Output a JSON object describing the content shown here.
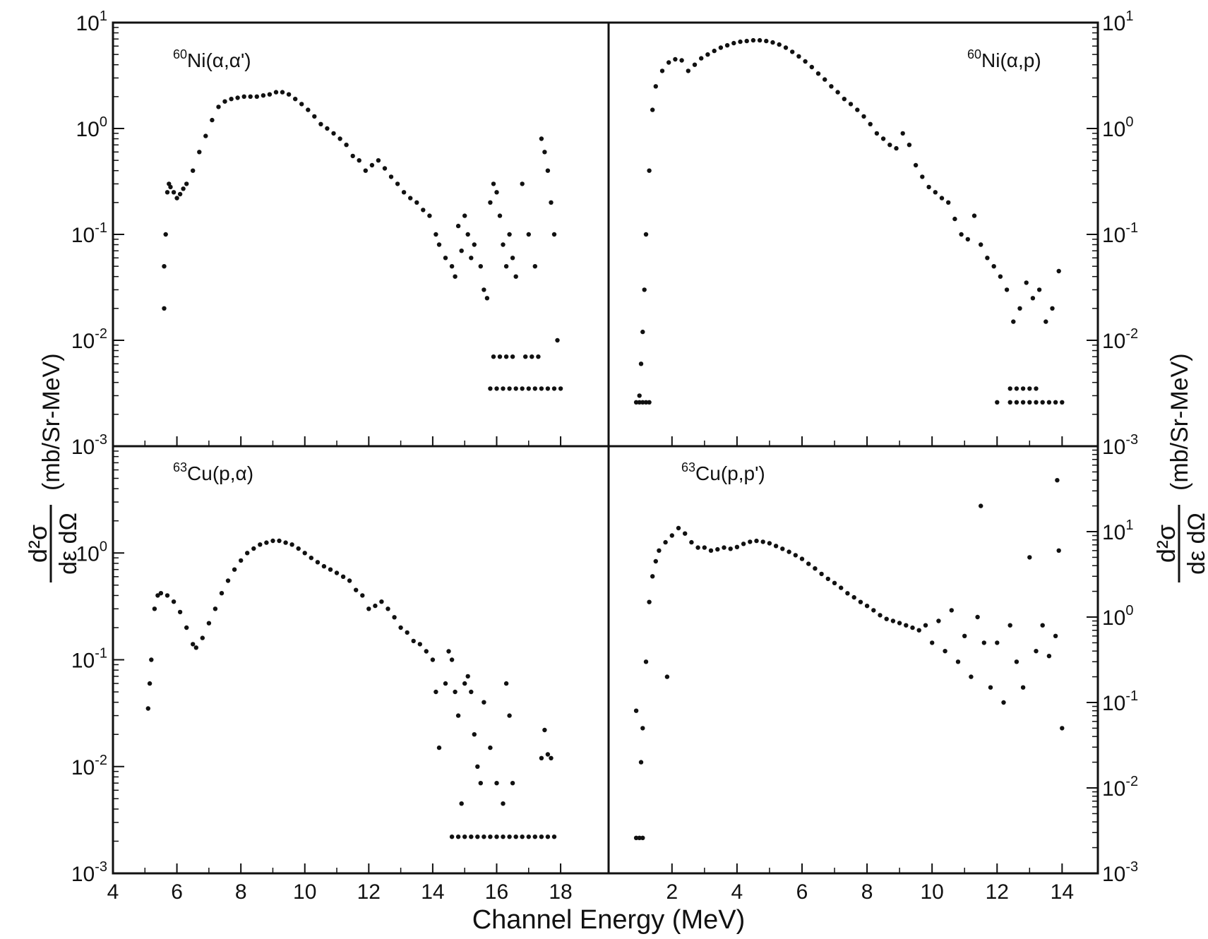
{
  "figure": {
    "xlabel": "Channel Energy (MeV)",
    "ylabel_left": {
      "numerator": "d²σ",
      "denominator": "dε dΩ",
      "units": "(mb/Sr-MeV)"
    },
    "ylabel_right": {
      "numerator": "d²σ",
      "denominator": "dε dΩ",
      "units": "(mb/Sr-MeV)"
    }
  },
  "chart_data": [
    {
      "type": "scatter",
      "title": "60Ni(α,α')",
      "label": {
        "mass": "60",
        "rest": "Ni(α,α')"
      },
      "yscale": "log",
      "xlim": [
        4,
        19.5
      ],
      "ylim": [
        0.001,
        10
      ],
      "xticks": [
        4,
        6,
        8,
        10,
        12,
        14,
        16,
        18
      ],
      "yticks": [
        {
          "value": 10,
          "base": "10",
          "exp": "1"
        },
        {
          "value": 1,
          "base": "10",
          "exp": "0"
        },
        {
          "value": 0.1,
          "base": "10",
          "exp": "-1"
        },
        {
          "value": 0.01,
          "base": "10",
          "exp": "-2"
        },
        {
          "value": 0.001,
          "base": "10",
          "exp": "-3"
        }
      ],
      "series": [
        {
          "x": [
            5.6,
            5.6,
            5.65,
            5.7,
            5.75,
            5.8,
            5.9,
            6.0,
            6.1,
            6.2,
            6.3,
            6.5,
            6.7,
            6.9,
            7.1,
            7.3,
            7.5,
            7.7,
            7.9,
            8.1,
            8.3,
            8.5,
            8.7,
            8.9,
            9.1,
            9.3,
            9.5,
            9.7,
            9.9,
            10.1,
            10.3,
            10.5,
            10.7,
            10.9,
            11.1,
            11.3,
            11.5,
            11.7,
            11.9,
            12.1,
            12.3,
            12.5,
            12.7,
            12.9,
            13.1,
            13.3,
            13.5,
            13.7,
            13.9,
            14.1,
            14.2,
            14.4,
            14.6,
            14.7,
            14.8,
            14.9,
            15.0,
            15.1,
            15.2,
            15.3,
            15.5,
            15.6,
            15.7,
            15.8,
            15.9,
            16.0,
            16.1,
            16.2,
            16.3,
            16.4,
            16.5,
            16.6,
            16.8,
            17.0,
            17.2,
            17.4,
            17.5,
            17.6,
            17.7,
            17.8,
            17.9
          ],
          "y": [
            0.02,
            0.05,
            0.1,
            0.25,
            0.3,
            0.28,
            0.25,
            0.22,
            0.24,
            0.27,
            0.3,
            0.4,
            0.6,
            0.85,
            1.2,
            1.6,
            1.8,
            1.9,
            1.95,
            2.0,
            2.0,
            2.0,
            2.05,
            2.1,
            2.2,
            2.2,
            2.1,
            1.9,
            1.7,
            1.5,
            1.3,
            1.1,
            1.0,
            0.9,
            0.8,
            0.7,
            0.55,
            0.5,
            0.4,
            0.45,
            0.5,
            0.42,
            0.35,
            0.3,
            0.25,
            0.22,
            0.2,
            0.17,
            0.15,
            0.1,
            0.08,
            0.06,
            0.05,
            0.04,
            0.12,
            0.07,
            0.15,
            0.1,
            0.06,
            0.08,
            0.05,
            0.03,
            0.025,
            0.2,
            0.3,
            0.25,
            0.15,
            0.08,
            0.05,
            0.1,
            0.06,
            0.04,
            0.3,
            0.1,
            0.05,
            0.8,
            0.6,
            0.4,
            0.2,
            0.1,
            0.01
          ]
        },
        {
          "x": [
            15.8,
            16.0,
            16.2,
            16.4,
            16.6,
            16.8,
            17.0,
            17.2,
            17.4,
            17.6,
            17.8,
            18.0
          ],
          "y": [
            0.0035,
            0.0035,
            0.0035,
            0.0035,
            0.0035,
            0.0035,
            0.0035,
            0.0035,
            0.0035,
            0.0035,
            0.0035,
            0.0035
          ]
        },
        {
          "x": [
            15.9,
            16.1,
            16.3,
            16.5,
            16.9,
            17.1,
            17.3
          ],
          "y": [
            0.007,
            0.007,
            0.007,
            0.007,
            0.007,
            0.007,
            0.007
          ]
        }
      ]
    },
    {
      "type": "scatter",
      "title": "60Ni(α,p)",
      "label": {
        "mass": "60",
        "rest": "Ni(α,p)"
      },
      "yscale": "log",
      "xlim": [
        0.05,
        15.1
      ],
      "ylim": [
        0.001,
        10
      ],
      "xticks": [
        2,
        4,
        6,
        8,
        10,
        12,
        14
      ],
      "yticks": [
        {
          "value": 10,
          "base": "10",
          "exp": "1"
        },
        {
          "value": 1,
          "base": "10",
          "exp": "0"
        },
        {
          "value": 0.1,
          "base": "10",
          "exp": "-1"
        },
        {
          "value": 0.01,
          "base": "10",
          "exp": "-2"
        },
        {
          "value": 0.001,
          "base": "10",
          "exp": "-3"
        }
      ],
      "series": [
        {
          "x": [
            1.0,
            1.05,
            1.1,
            1.15,
            1.2,
            1.3,
            1.4,
            1.5,
            1.7,
            1.9,
            2.1,
            2.3,
            2.5,
            2.7,
            2.9,
            3.1,
            3.3,
            3.5,
            3.7,
            3.9,
            4.1,
            4.3,
            4.5,
            4.7,
            4.9,
            5.1,
            5.3,
            5.5,
            5.7,
            5.9,
            6.1,
            6.3,
            6.5,
            6.7,
            6.9,
            7.1,
            7.3,
            7.5,
            7.7,
            7.9,
            8.1,
            8.3,
            8.5,
            8.7,
            8.9,
            9.1,
            9.3,
            9.5,
            9.7,
            9.9,
            10.1,
            10.3,
            10.5,
            10.7,
            10.9,
            11.1,
            11.3,
            11.5,
            11.7,
            11.9,
            12.1,
            12.3,
            12.5,
            12.7,
            12.9,
            13.1,
            13.3,
            13.5,
            13.7,
            13.9
          ],
          "y": [
            0.003,
            0.006,
            0.012,
            0.03,
            0.1,
            0.4,
            1.5,
            2.5,
            3.5,
            4.2,
            4.5,
            4.4,
            3.5,
            4.0,
            4.6,
            5.0,
            5.4,
            5.8,
            6.1,
            6.4,
            6.6,
            6.7,
            6.8,
            6.8,
            6.7,
            6.5,
            6.2,
            5.8,
            5.3,
            4.8,
            4.3,
            3.8,
            3.3,
            2.9,
            2.5,
            2.2,
            1.9,
            1.7,
            1.5,
            1.3,
            1.1,
            0.9,
            0.8,
            0.7,
            0.65,
            0.9,
            0.7,
            0.45,
            0.35,
            0.28,
            0.25,
            0.22,
            0.2,
            0.14,
            0.1,
            0.09,
            0.15,
            0.08,
            0.06,
            0.05,
            0.04,
            0.03,
            0.015,
            0.02,
            0.035,
            0.025,
            0.03,
            0.015,
            0.02,
            0.045
          ]
        },
        {
          "x": [
            0.9,
            1.0,
            1.1,
            1.2,
            1.3,
            12.0,
            12.4,
            12.6,
            12.8,
            13.0,
            13.2,
            13.4,
            13.6,
            13.8,
            14.0
          ],
          "y": [
            0.0026,
            0.0026,
            0.0026,
            0.0026,
            0.0026,
            0.0026,
            0.0026,
            0.0026,
            0.0026,
            0.0026,
            0.0026,
            0.0026,
            0.0026,
            0.0026,
            0.0026
          ]
        },
        {
          "x": [
            12.4,
            12.6,
            12.8,
            13.0,
            13.2
          ],
          "y": [
            0.0035,
            0.0035,
            0.0035,
            0.0035,
            0.0035
          ]
        }
      ]
    },
    {
      "type": "scatter",
      "title": "63Cu(p,α)",
      "label": {
        "mass": "63",
        "rest": "Cu(p,α)"
      },
      "yscale": "log",
      "xlim": [
        4,
        19.5
      ],
      "ylim": [
        0.001,
        10
      ],
      "xticks": [
        4,
        6,
        8,
        10,
        12,
        14,
        16,
        18
      ],
      "yticks": [
        {
          "value": 1,
          "base": "10",
          "exp": "0"
        },
        {
          "value": 0.1,
          "base": "10",
          "exp": "-1"
        },
        {
          "value": 0.01,
          "base": "10",
          "exp": "-2"
        },
        {
          "value": 0.001,
          "base": "10",
          "exp": "-3"
        }
      ],
      "series": [
        {
          "x": [
            5.1,
            5.15,
            5.2,
            5.3,
            5.4,
            5.5,
            5.7,
            5.9,
            6.1,
            6.3,
            6.5,
            6.6,
            6.8,
            7.0,
            7.2,
            7.4,
            7.6,
            7.8,
            8.0,
            8.2,
            8.4,
            8.6,
            8.8,
            9.0,
            9.2,
            9.4,
            9.6,
            9.8,
            10.0,
            10.2,
            10.4,
            10.6,
            10.8,
            11.0,
            11.2,
            11.4,
            11.6,
            11.8,
            12.0,
            12.2,
            12.4,
            12.6,
            12.8,
            13.0,
            13.2,
            13.4,
            13.6,
            13.8,
            14.0,
            14.1,
            14.2,
            14.4,
            14.5,
            14.6,
            14.7,
            14.8,
            14.9,
            15.0,
            15.1,
            15.2,
            15.3,
            15.4,
            15.5,
            15.6,
            15.8,
            16.0,
            16.2,
            16.3,
            16.4,
            16.5,
            17.4,
            17.5,
            17.6,
            17.7
          ],
          "y": [
            0.035,
            0.06,
            0.1,
            0.3,
            0.4,
            0.42,
            0.4,
            0.35,
            0.28,
            0.2,
            0.14,
            0.13,
            0.16,
            0.22,
            0.3,
            0.42,
            0.55,
            0.7,
            0.85,
            1.0,
            1.1,
            1.2,
            1.25,
            1.3,
            1.3,
            1.25,
            1.2,
            1.1,
            1.0,
            0.9,
            0.82,
            0.75,
            0.7,
            0.65,
            0.6,
            0.55,
            0.45,
            0.4,
            0.3,
            0.32,
            0.35,
            0.3,
            0.25,
            0.2,
            0.18,
            0.15,
            0.14,
            0.12,
            0.1,
            0.05,
            0.015,
            0.06,
            0.12,
            0.1,
            0.05,
            0.03,
            0.0045,
            0.06,
            0.07,
            0.05,
            0.02,
            0.01,
            0.007,
            0.04,
            0.015,
            0.007,
            0.0045,
            0.06,
            0.03,
            0.007,
            0.012,
            0.022,
            0.013,
            0.012
          ]
        },
        {
          "x": [
            14.6,
            14.8,
            15.0,
            15.2,
            15.4,
            15.6,
            15.8,
            16.0,
            16.2,
            16.4,
            16.6,
            16.8,
            17.0,
            17.2,
            17.4,
            17.6,
            17.8
          ],
          "y": [
            0.0022,
            0.0022,
            0.0022,
            0.0022,
            0.0022,
            0.0022,
            0.0022,
            0.0022,
            0.0022,
            0.0022,
            0.0022,
            0.0022,
            0.0022,
            0.0022,
            0.0022,
            0.0022,
            0.0022
          ]
        }
      ]
    },
    {
      "type": "scatter",
      "title": "63Cu(p,p')",
      "label": {
        "mass": "63",
        "rest": "Cu(p,p')"
      },
      "yscale": "log",
      "xlim": [
        0.05,
        15.1
      ],
      "ylim": [
        0.001,
        100
      ],
      "xticks": [
        2,
        4,
        6,
        8,
        10,
        12,
        14
      ],
      "yticks": [
        {
          "value": 10,
          "base": "10",
          "exp": "1"
        },
        {
          "value": 1,
          "base": "10",
          "exp": "0"
        },
        {
          "value": 0.1,
          "base": "10",
          "exp": "-1"
        },
        {
          "value": 0.01,
          "base": "10",
          "exp": "-2"
        },
        {
          "value": 0.001,
          "base": "10",
          "exp": "-3"
        }
      ],
      "series": [
        {
          "x": [
            0.9,
            1.05,
            1.1,
            1.2,
            1.3,
            1.4,
            1.5,
            1.6,
            1.8,
            1.85,
            2.0,
            2.2,
            2.4,
            2.6,
            2.8,
            3.0,
            3.2,
            3.4,
            3.6,
            3.8,
            4.0,
            4.2,
            4.4,
            4.6,
            4.8,
            5.0,
            5.2,
            5.4,
            5.6,
            5.8,
            6.0,
            6.2,
            6.4,
            6.6,
            6.8,
            7.0,
            7.2,
            7.4,
            7.6,
            7.8,
            8.0,
            8.2,
            8.4,
            8.6,
            8.8,
            9.0,
            9.2,
            9.4,
            9.6,
            9.8,
            10.0,
            10.2,
            10.4,
            10.6,
            10.8,
            11.0,
            11.2,
            11.4,
            11.5,
            11.6,
            11.8,
            12.0,
            12.2,
            12.4,
            12.6,
            12.8,
            13.0,
            13.2,
            13.4,
            13.6,
            13.8,
            13.85,
            13.9,
            14.0
          ],
          "y": [
            0.08,
            0.02,
            0.05,
            0.3,
            1.5,
            3.0,
            4.5,
            6.0,
            7.5,
            0.2,
            9.0,
            11.0,
            9.5,
            7.5,
            6.5,
            6.5,
            6.0,
            6.2,
            6.5,
            6.3,
            6.6,
            7.2,
            7.6,
            7.8,
            7.6,
            7.3,
            6.8,
            6.3,
            5.8,
            5.3,
            4.8,
            4.2,
            3.7,
            3.2,
            2.8,
            2.5,
            2.2,
            1.9,
            1.7,
            1.5,
            1.35,
            1.2,
            1.05,
            0.95,
            0.9,
            0.85,
            0.8,
            0.75,
            0.7,
            0.8,
            0.5,
            0.9,
            0.4,
            1.2,
            0.3,
            0.6,
            0.2,
            1.0,
            20.0,
            0.5,
            0.15,
            0.5,
            0.1,
            0.8,
            0.3,
            0.15,
            5.0,
            0.4,
            0.8,
            0.35,
            0.6,
            40.0,
            6.0,
            0.05
          ]
        },
        {
          "x": [
            0.9,
            1.0,
            1.1
          ],
          "y": [
            0.0026,
            0.0026,
            0.0026
          ]
        }
      ]
    }
  ]
}
